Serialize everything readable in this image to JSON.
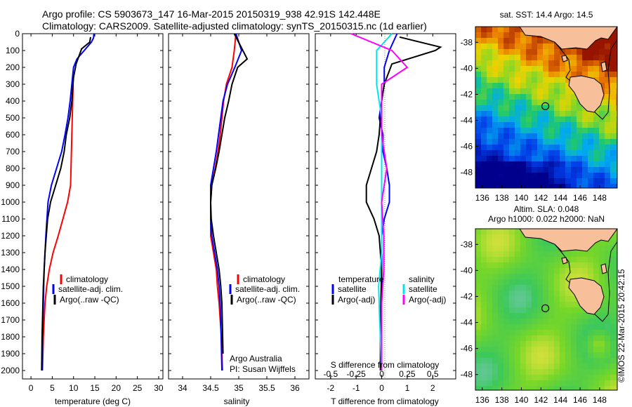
{
  "header": {
    "line1": "Argo profile: CS 5903673_147 16-Mar-2015 20150319_938 42.91S 142.448E",
    "line2": "Climatology: CARS2009. Satellite-adjusted climatology: synTS_20150315.nc (1d earlier)"
  },
  "depth_ticks": [
    "0",
    "100",
    "200",
    "300",
    "400",
    "500",
    "600",
    "700",
    "800",
    "900",
    "1000",
    "1100",
    "1200",
    "1300",
    "1400",
    "1500",
    "1600",
    "1700",
    "1800",
    "1900",
    "2000"
  ],
  "colors": {
    "climatology": "#ff0000",
    "satellite": "#0000ff",
    "argo": "#000000",
    "sal_satellite": "#00e5ee",
    "sal_argo": "#ff00ff"
  },
  "chart_data": [
    {
      "type": "line",
      "xlabel": "temperature (deg C)",
      "xlim": [
        -2,
        31
      ],
      "xticks": [
        0,
        5,
        10,
        15,
        20,
        25,
        30
      ],
      "ylim": [
        2050,
        0
      ],
      "legend": [
        "climatology",
        "satellite-adj. clim.",
        "Argo(..raw -QC)"
      ],
      "series": [
        {
          "name": "climatology",
          "color": "#ff0000",
          "x": [
            2.7,
            2.8,
            2.9,
            3.1,
            3.3,
            3.7,
            4.3,
            5.2,
            6.4,
            7.5,
            8.6,
            9.3,
            9.9
          ],
          "y": [
            2000,
            1900,
            1800,
            1700,
            1600,
            1500,
            1400,
            1300,
            1200,
            1100,
            1000,
            900,
            300
          ]
        },
        {
          "name": "satellite-adj. clim.",
          "color": "#0000ff",
          "x": [
            14.8,
            14.7,
            14.2,
            12.5,
            10.8,
            10.0,
            9.6,
            9.2,
            8.7,
            8.0,
            7.2,
            6.0,
            4.8,
            4.0,
            3.5,
            3.1,
            2.8,
            2.6
          ],
          "y": [
            0,
            25,
            50,
            100,
            150,
            200,
            300,
            400,
            500,
            600,
            700,
            800,
            900,
            1000,
            1200,
            1400,
            1700,
            2000
          ]
        },
        {
          "name": "Argo(..raw -QC)",
          "color": "#000000",
          "x": [
            14.0,
            13.8,
            11.9,
            10.6,
            10.0,
            9.6,
            9.1,
            8.3,
            7.8,
            7.0,
            5.8,
            4.6,
            3.9,
            3.3,
            2.9,
            2.6,
            2.5
          ],
          "y": [
            20,
            50,
            90,
            180,
            260,
            400,
            500,
            600,
            700,
            800,
            900,
            1000,
            1100,
            1300,
            1500,
            1800,
            2000
          ]
        }
      ]
    },
    {
      "type": "line",
      "xlabel": "salinity",
      "xlim": [
        33.75,
        36.25
      ],
      "xticks": [
        34,
        34.5,
        35,
        35.5,
        36
      ],
      "ylim": [
        2050,
        0
      ],
      "legend": [
        "climatology",
        "satellite-adj. clim.",
        "Argo(..raw -QC)"
      ],
      "series": [
        {
          "name": "climatology",
          "color": "#ff0000",
          "x": [
            34.95,
            34.92,
            34.88,
            34.78,
            34.73,
            34.7,
            34.67,
            34.63,
            34.58,
            34.52,
            34.5,
            34.5,
            34.5,
            34.55,
            34.6,
            34.62,
            34.65,
            34.67,
            34.69,
            34.71
          ],
          "y": [
            0,
            100,
            200,
            300,
            400,
            500,
            600,
            700,
            800,
            900,
            1000,
            1100,
            1200,
            1300,
            1400,
            1500,
            1600,
            1700,
            1800,
            2000
          ]
        },
        {
          "name": "satellite-adj. clim.",
          "color": "#0000ff",
          "x": [
            34.95,
            35.05,
            34.93,
            34.8,
            34.72,
            34.68,
            34.64,
            34.6,
            34.55,
            34.5,
            34.5,
            34.5,
            34.52,
            34.57,
            34.62,
            34.65,
            34.67,
            34.68,
            34.7
          ],
          "y": [
            0,
            100,
            200,
            300,
            400,
            500,
            600,
            700,
            800,
            900,
            1000,
            1100,
            1200,
            1300,
            1400,
            1500,
            1600,
            1700,
            2000
          ]
        },
        {
          "name": "Argo(..raw -QC)",
          "color": "#000000",
          "x": [
            34.92,
            35.15,
            34.98,
            34.88,
            34.82,
            34.75,
            34.7,
            34.65,
            34.59,
            34.52,
            34.5,
            34.51,
            34.55,
            34.6,
            34.65,
            34.68,
            34.7,
            34.72
          ],
          "y": [
            0,
            150,
            200,
            300,
            400,
            500,
            600,
            700,
            800,
            900,
            1000,
            1100,
            1200,
            1300,
            1400,
            1500,
            1600,
            1900
          ]
        }
      ],
      "annotation": {
        "line1": "Argo Australia",
        "line2": "PI: Susan Wijffels"
      }
    },
    {
      "type": "line",
      "xlabel": "T difference from climatology",
      "x2label": "S difference from climatology",
      "xlim": [
        -2.6,
        2.9
      ],
      "xticks": [
        -2,
        -1,
        0,
        1,
        2
      ],
      "x2lim": [
        -0.65,
        0.725
      ],
      "x2ticks": [
        -0.5,
        -0.25,
        0,
        0.25,
        0.5
      ],
      "x2ticklabels": [
        "-0.5",
        "-0.25",
        "0",
        "0.25",
        "0.5"
      ],
      "ylim": [
        2050,
        0
      ],
      "legend": {
        "left": {
          "heading": "temperature",
          "items": [
            "satellite",
            "Argo(-adj)"
          ]
        },
        "right": {
          "heading": "salinity",
          "items": [
            "satellite",
            "Argo(-adj)"
          ]
        }
      },
      "series": [
        {
          "name": "satellite",
          "group": "temperature",
          "color": "#0000ff",
          "x": [
            0.6,
            0.3,
            0.1,
            0.1,
            0.0,
            -0.1,
            0.05,
            0.05,
            0.2,
            0.3,
            0.3,
            0.1,
            0.0,
            0.0,
            0.0,
            0.0
          ],
          "y": [
            0,
            100,
            200,
            300,
            400,
            500,
            600,
            700,
            800,
            900,
            1000,
            1100,
            1200,
            1400,
            1700,
            2000
          ]
        },
        {
          "name": "Argo(-adj)",
          "group": "temperature",
          "color": "#000000",
          "x": [
            0.7,
            2.3,
            2.1,
            0.4,
            0.1,
            0.0,
            -0.1,
            -0.2,
            -0.4,
            -0.6,
            -0.6,
            -0.3,
            -0.1,
            0.0,
            -0.05,
            -0.05
          ],
          "y": [
            20,
            80,
            100,
            180,
            300,
            400,
            600,
            700,
            800,
            900,
            1000,
            1100,
            1200,
            1400,
            1700,
            2000
          ]
        },
        {
          "name": "satellite",
          "group": "salinity",
          "color": "#00e5ee",
          "x": [
            0.1,
            -0.05,
            -0.05,
            0.0,
            0.0,
            0.0,
            0.0,
            0.0,
            -0.03,
            -0.02,
            0.0
          ],
          "y": [
            0,
            100,
            300,
            500,
            700,
            900,
            1100,
            1300,
            1500,
            1700,
            2000
          ]
        },
        {
          "name": "Argo(-adj)",
          "group": "salinity",
          "color": "#ff00ff",
          "x": [
            -0.3,
            0.1,
            0.25,
            0.0,
            0.0,
            0.0,
            0.05,
            0.0,
            0.02,
            0.02,
            0.0,
            0.0,
            0.0
          ],
          "y": [
            0,
            100,
            200,
            300,
            400,
            600,
            800,
            1000,
            1200,
            1400,
            1600,
            1800,
            2000
          ]
        }
      ]
    },
    {
      "type": "heatmap",
      "title": "sat. SST: 14.4  Argo: 14.5",
      "xticks": [
        136,
        138,
        140,
        142,
        144,
        146,
        148
      ],
      "yticks": [
        -38,
        -40,
        -42,
        -44,
        -46,
        -48
      ],
      "xlim": [
        135.3,
        149.8
      ],
      "ylim": [
        -49.2,
        -36.8
      ],
      "argo_position": {
        "lon": 142.448,
        "lat": -42.91
      }
    },
    {
      "type": "heatmap",
      "title_line1": "Altim. SLA: 0.048",
      "title_line2": "Argo h1000: 0.022  h2000: NaN",
      "xticks": [
        136,
        138,
        140,
        142,
        144,
        146,
        148
      ],
      "yticks": [
        -38,
        -40,
        -42,
        -44,
        -46,
        -48
      ],
      "xlim": [
        135.3,
        149.8
      ],
      "ylim": [
        -49.2,
        -36.8
      ],
      "argo_position": {
        "lon": 142.448,
        "lat": -42.91
      }
    }
  ],
  "footer_stamp": "©IMOS 22-Mar-2015 20:42:15"
}
